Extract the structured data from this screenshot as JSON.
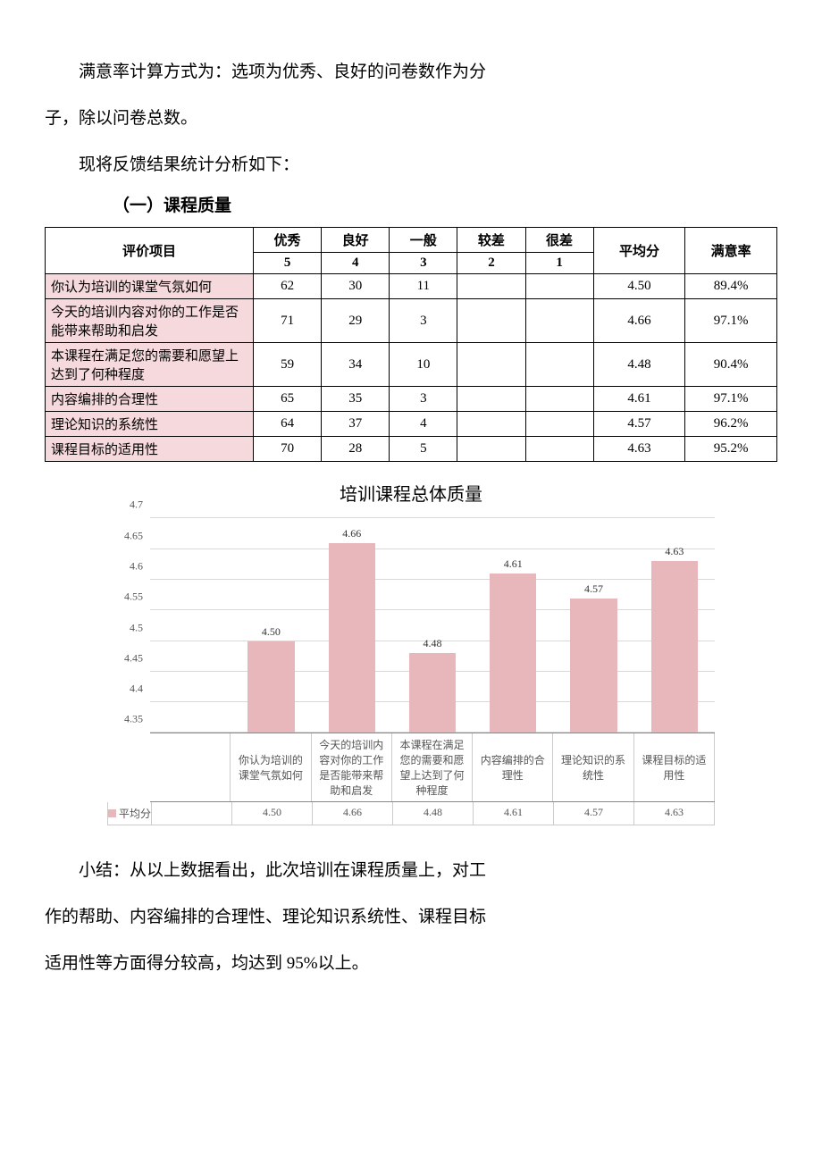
{
  "text": {
    "p1a": "满意率计算方式为：选项为优秀、良好的问卷数作为分",
    "p1b": "子，除以问卷总数。",
    "p2": "现将反馈结果统计分析如下：",
    "section1": "（一）课程质量",
    "summary1": "小结：从以上数据看出，此次培训在课程质量上，对工",
    "summary2": "作的帮助、内容编排的合理性、理论知识系统性、课程目标",
    "summary3": "适用性等方面得分较高，均达到 95%以上。"
  },
  "table": {
    "col_item": "评价项目",
    "col_avg": "平均分",
    "col_sat": "满意率",
    "rating_labels": [
      "优秀",
      "良好",
      "一般",
      "较差",
      "很差"
    ],
    "rating_scores": [
      "5",
      "4",
      "3",
      "2",
      "1"
    ],
    "rows": [
      {
        "label": "你认为培训的课堂气氛如何",
        "v": [
          "62",
          "30",
          "11",
          "",
          ""
        ],
        "avg": "4.50",
        "sat": "89.4%"
      },
      {
        "label": "今天的培训内容对你的工作是否能带来帮助和启发",
        "v": [
          "71",
          "29",
          "3",
          "",
          ""
        ],
        "avg": "4.66",
        "sat": "97.1%"
      },
      {
        "label": "本课程在满足您的需要和愿望上达到了何种程度",
        "v": [
          "59",
          "34",
          "10",
          "",
          ""
        ],
        "avg": "4.48",
        "sat": "90.4%"
      },
      {
        "label": "内容编排的合理性",
        "v": [
          "65",
          "35",
          "3",
          "",
          ""
        ],
        "avg": "4.61",
        "sat": "97.1%"
      },
      {
        "label": "理论知识的系统性",
        "v": [
          "64",
          "37",
          "4",
          "",
          ""
        ],
        "avg": "4.57",
        "sat": "96.2%"
      },
      {
        "label": "课程目标的适用性",
        "v": [
          "70",
          "28",
          "5",
          "",
          ""
        ],
        "avg": "4.63",
        "sat": "95.2%"
      }
    ]
  },
  "chart": {
    "title": "培训课程总体质量",
    "type": "bar",
    "ymin": 4.35,
    "ymax": 4.7,
    "yticks": [
      4.35,
      4.4,
      4.45,
      4.5,
      4.55,
      4.6,
      4.65,
      4.7
    ],
    "ytick_labels": [
      "4.35",
      "4.4",
      "4.45",
      "4.5",
      "4.55",
      "4.6",
      "4.65",
      "4.7"
    ],
    "bar_color": "#e8b7bb",
    "grid_color": "#d9d9d9",
    "background_color": "#ffffff",
    "categories": [
      "你认为培训的课堂气氛如何",
      "今天的培训内容对你的工作是否能带来帮助和启发",
      "本课程在满足您的需要和愿望上达到了何种程度",
      "内容编排的合理性",
      "理论知识的系统性",
      "课程目标的适用性"
    ],
    "values": [
      4.5,
      4.66,
      4.48,
      4.61,
      4.57,
      4.63
    ],
    "value_labels": [
      "4.50",
      "4.66",
      "4.48",
      "4.61",
      "4.57",
      "4.63"
    ],
    "legend_label": "平均分"
  }
}
